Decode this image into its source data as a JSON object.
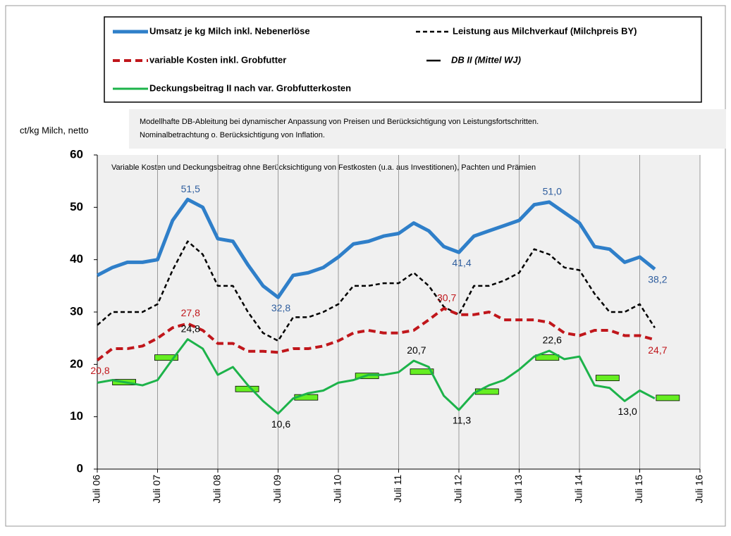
{
  "chart_data": {
    "type": "line",
    "y_label": "ct/kg Milch, netto",
    "note": [
      "Modellhafte DB-Ableitung  bei dynamischer Anpassung von Preisen und Berücksichtigung von Leistungsfortschritten.",
      "Nominalbetrachtung o. Berücksichtigung von Inflation."
    ],
    "annotation": "Variable Kosten und Deckungsbeitrag ohne Berücksichtigung von Festkosten (u.a. aus Investitionen), Pachten und Prämien",
    "x": [
      2006.5,
      2006.75,
      2007,
      2007.25,
      2007.5,
      2007.75,
      2008,
      2008.25,
      2008.5,
      2008.75,
      2009,
      2009.25,
      2009.5,
      2009.75,
      2010,
      2010.25,
      2010.5,
      2010.75,
      2011,
      2011.25,
      2011.5,
      2011.75,
      2012,
      2012.25,
      2012.5,
      2012.75,
      2013,
      2013.25,
      2013.5,
      2013.75,
      2014,
      2014.25,
      2014.5,
      2014.75,
      2015,
      2015.25,
      2015.5,
      2015.75
    ],
    "xlim": [
      2006.5,
      2016.5
    ],
    "xticks": [
      {
        "value": 2006.5,
        "label": "Juli 06"
      },
      {
        "value": 2007.5,
        "label": "Juli 07"
      },
      {
        "value": 2008.5,
        "label": "Juli 08"
      },
      {
        "value": 2009.5,
        "label": "Juli 09"
      },
      {
        "value": 2010.5,
        "label": "Juli 10"
      },
      {
        "value": 2011.5,
        "label": "Juli 11"
      },
      {
        "value": 2012.5,
        "label": "Juli 12"
      },
      {
        "value": 2013.5,
        "label": "Juli 13"
      },
      {
        "value": 2014.5,
        "label": "Juli 14"
      },
      {
        "value": 2015.5,
        "label": "Juli 15"
      },
      {
        "value": 2016.5,
        "label": "Juli 16"
      }
    ],
    "ylim": [
      0,
      60
    ],
    "yticks": [
      0,
      10,
      20,
      30,
      40,
      50,
      60
    ],
    "grid": "x",
    "series": [
      {
        "name": "Umsatz je kg Milch inkl. Nebenerlöse",
        "color": "#2f7fc9",
        "style": "solid",
        "label_color": "#2f5e9e",
        "values": [
          37,
          38.5,
          39.5,
          39.5,
          40,
          47.5,
          51.5,
          50,
          44,
          43.5,
          39,
          35,
          32.8,
          37,
          37.5,
          38.5,
          40.5,
          43,
          43.5,
          44.5,
          45,
          47,
          45.5,
          42.5,
          41.4,
          44.5,
          45.5,
          46.5,
          47.5,
          50.5,
          51,
          49,
          47,
          42.5,
          42,
          39.5,
          40.5,
          38.2
        ],
        "value_labels": [
          null,
          null,
          null,
          null,
          null,
          null,
          "51,5",
          null,
          null,
          null,
          null,
          null,
          "32,8",
          null,
          null,
          null,
          null,
          null,
          null,
          null,
          null,
          null,
          null,
          null,
          "41,4",
          null,
          null,
          null,
          null,
          null,
          "51,0",
          null,
          null,
          null,
          null,
          null,
          null,
          "38,2"
        ]
      },
      {
        "name": "Leistung aus Milchverkauf (Milchpreis BY)",
        "color": "#000000",
        "style": "dashed",
        "label_color": "#000000",
        "values": [
          27.5,
          30,
          30,
          30,
          31.5,
          38,
          43.5,
          41,
          35,
          35,
          30,
          26,
          24.5,
          29,
          29,
          30,
          31.5,
          35,
          35,
          35.5,
          35.5,
          37.5,
          35,
          31,
          29.5,
          35,
          35,
          36,
          37.5,
          42,
          41,
          38.5,
          38,
          33.5,
          30,
          30,
          31.5,
          27
        ]
      },
      {
        "name": "variable Kosten inkl. Grobfutter",
        "color": "#c0161b",
        "style": "dashed",
        "label_color": "#c0161b",
        "values": [
          20.8,
          23,
          23,
          23.5,
          25,
          27,
          27.8,
          26.5,
          24,
          24,
          22.5,
          22.5,
          22.3,
          23,
          23,
          23.5,
          24.5,
          26,
          26.5,
          26,
          26,
          26.5,
          28.5,
          30.7,
          29.5,
          29.5,
          30,
          28.5,
          28.5,
          28.5,
          28,
          26,
          25.5,
          26.5,
          26.5,
          25.5,
          25.5,
          24.7
        ],
        "value_labels": [
          "20,8",
          null,
          null,
          null,
          null,
          null,
          "27,8",
          null,
          null,
          null,
          null,
          null,
          null,
          null,
          null,
          null,
          null,
          null,
          null,
          null,
          null,
          null,
          null,
          "30,7",
          null,
          null,
          null,
          null,
          null,
          null,
          null,
          null,
          null,
          null,
          null,
          null,
          null,
          "24,7"
        ]
      },
      {
        "name": "DB II (Mittel WJ)",
        "color": "#66ee22",
        "style": "marker",
        "x": [
          2006.94,
          2007.64,
          2008.98,
          2009.96,
          2010.97,
          2011.88,
          2012.96,
          2013.96,
          2014.96,
          2015.96
        ],
        "values": [
          16.6,
          21.3,
          15.3,
          13.7,
          17.8,
          18.6,
          14.8,
          21.3,
          17.4,
          13.6
        ]
      },
      {
        "name": "Deckungsbeitrag II nach var. Grobfutterkosten",
        "color": "#1db34a",
        "style": "solid",
        "label_color": "#000000",
        "values": [
          16.5,
          17,
          16.5,
          16,
          17,
          21,
          24.8,
          23,
          18,
          19.5,
          16,
          13,
          10.6,
          13.5,
          14.5,
          15,
          16.5,
          17,
          18,
          18,
          18.5,
          20.7,
          19.5,
          14,
          11.3,
          14.5,
          16,
          17,
          19,
          21.5,
          22.6,
          21,
          21.5,
          16,
          15.5,
          13,
          15,
          13.5
        ],
        "value_labels": [
          null,
          null,
          null,
          null,
          null,
          null,
          "24,8",
          null,
          null,
          null,
          null,
          null,
          "10,6",
          null,
          null,
          null,
          null,
          null,
          null,
          null,
          null,
          "20,7",
          null,
          null,
          "11,3",
          null,
          null,
          null,
          null,
          null,
          "22,6",
          null,
          null,
          null,
          null,
          "13,0",
          null,
          null
        ]
      }
    ]
  }
}
